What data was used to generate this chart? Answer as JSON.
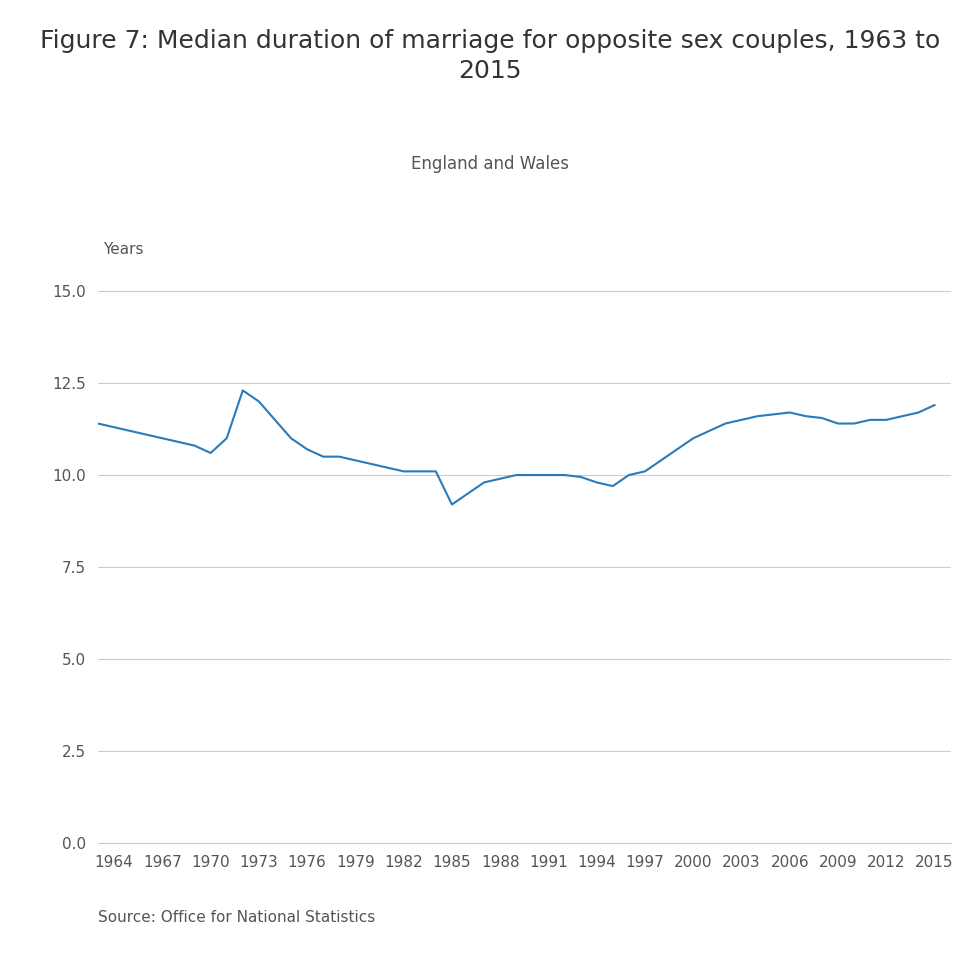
{
  "title": "Figure 7: Median duration of marriage for opposite sex couples, 1963 to\n2015",
  "subtitle": "England and Wales",
  "ylabel": "Years",
  "source": "Source: Office for National Statistics",
  "background_color": "#ffffff",
  "line_color": "#2b7bba",
  "grid_color": "#cccccc",
  "text_color": "#555555",
  "title_color": "#333333",
  "years": [
    1963,
    1964,
    1965,
    1966,
    1967,
    1968,
    1969,
    1970,
    1971,
    1972,
    1973,
    1974,
    1975,
    1976,
    1977,
    1978,
    1979,
    1980,
    1981,
    1982,
    1983,
    1984,
    1985,
    1986,
    1987,
    1988,
    1989,
    1990,
    1991,
    1992,
    1993,
    1994,
    1995,
    1996,
    1997,
    1998,
    1999,
    2000,
    2001,
    2002,
    2003,
    2004,
    2005,
    2006,
    2007,
    2008,
    2009,
    2010,
    2011,
    2012,
    2013,
    2014,
    2015
  ],
  "values": [
    11.4,
    11.3,
    11.2,
    11.1,
    11.0,
    10.9,
    10.8,
    10.6,
    11.0,
    12.3,
    12.0,
    11.5,
    11.0,
    10.7,
    10.5,
    10.5,
    10.4,
    10.3,
    10.2,
    10.1,
    10.1,
    10.1,
    9.2,
    9.5,
    9.8,
    9.9,
    10.0,
    10.0,
    10.0,
    10.0,
    9.95,
    9.8,
    9.7,
    10.0,
    10.1,
    10.4,
    10.7,
    11.0,
    11.2,
    11.4,
    11.5,
    11.6,
    11.65,
    11.7,
    11.6,
    11.55,
    11.4,
    11.4,
    11.5,
    11.5,
    11.6,
    11.7,
    11.9
  ],
  "yticks": [
    0.0,
    2.5,
    5.0,
    7.5,
    10.0,
    12.5,
    15.0
  ],
  "xtick_years": [
    1964,
    1967,
    1970,
    1973,
    1976,
    1979,
    1982,
    1985,
    1988,
    1991,
    1994,
    1997,
    2000,
    2003,
    2006,
    2009,
    2012,
    2015
  ],
  "ylim": [
    0,
    15.8
  ],
  "xlim": [
    1963,
    2016
  ],
  "title_fontsize": 18,
  "subtitle_fontsize": 12,
  "tick_fontsize": 11,
  "source_fontsize": 11,
  "ylabel_fontsize": 11
}
